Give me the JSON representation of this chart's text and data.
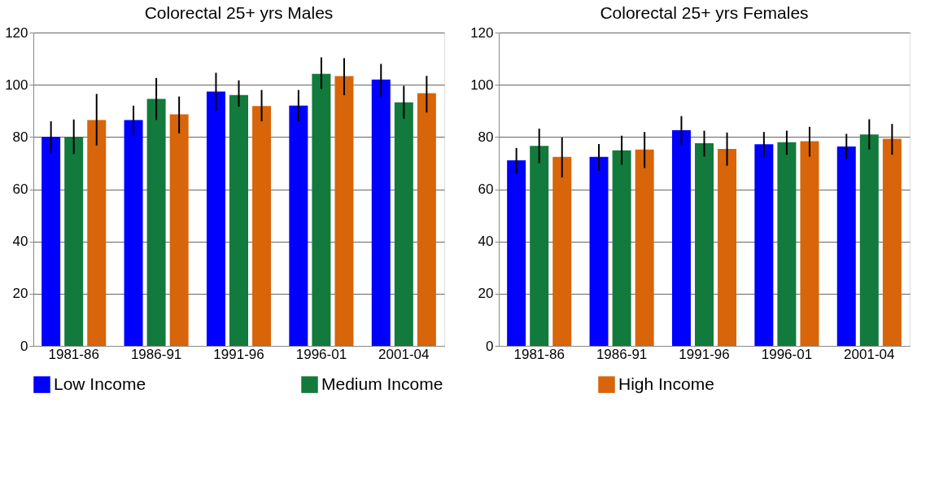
{
  "chart_data": [
    {
      "type": "bar",
      "title": "Colorectal   25+ yrs   Males",
      "categories": [
        "1981-86",
        "1986-91",
        "1991-96",
        "1996-01",
        "2001-04"
      ],
      "ylim": [
        0,
        120
      ],
      "yticks": [
        0,
        20,
        40,
        60,
        80,
        100,
        120
      ],
      "grid": "y",
      "legend": "bottom",
      "series": [
        {
          "name": "Low Income",
          "color": "#0000ff",
          "values": [
            80,
            86.5,
            97.4,
            92,
            102
          ],
          "errors": [
            [
              74,
              86
            ],
            [
              80.5,
              92
            ],
            [
              90,
              104.6
            ],
            [
              86,
              98
            ],
            [
              95.5,
              108
            ]
          ]
        },
        {
          "name": "Medium Income",
          "color": "#127a3c",
          "values": [
            80,
            94.6,
            96.1,
            104.2,
            93.3
          ],
          "errors": [
            [
              73.5,
              86.7
            ],
            [
              86.5,
              102.6
            ],
            [
              91.6,
              101.7
            ],
            [
              98.4,
              110.5
            ],
            [
              87,
              99.6
            ]
          ]
        },
        {
          "name": "High Income",
          "color": "#d8650a",
          "values": [
            86.5,
            88.7,
            91.9,
            103.3,
            96.8
          ],
          "errors": [
            [
              76.7,
              96.5
            ],
            [
              81.4,
              95.5
            ],
            [
              86,
              98
            ],
            [
              96,
              110.2
            ],
            [
              89.4,
              103.4
            ]
          ]
        }
      ]
    },
    {
      "type": "bar",
      "title": "Colorectal   25+ yrs   Females",
      "categories": [
        "1981-86",
        "1986-91",
        "1991-96",
        "1996-01",
        "2001-04"
      ],
      "ylim": [
        0,
        120
      ],
      "yticks": [
        0,
        20,
        40,
        60,
        80,
        100,
        120
      ],
      "grid": "y",
      "legend": "bottom",
      "series": [
        {
          "name": "Low Income",
          "color": "#0000ff",
          "values": [
            71.1,
            72.4,
            82.6,
            77.2,
            76.4
          ],
          "errors": [
            [
              66,
              75.8
            ],
            [
              67.1,
              77.3
            ],
            [
              76.8,
              88
            ],
            [
              72.5,
              81.9
            ],
            [
              71.6,
              81.2
            ]
          ]
        },
        {
          "name": "Medium Income",
          "color": "#127a3c",
          "values": [
            76.6,
            74.9,
            77.6,
            78,
            81
          ],
          "errors": [
            [
              70,
              83.2
            ],
            [
              69.4,
              80.5
            ],
            [
              72.5,
              82.4
            ],
            [
              73.2,
              82.4
            ],
            [
              75.2,
              86.8
            ]
          ]
        },
        {
          "name": "High Income",
          "color": "#d8650a",
          "values": [
            72.4,
            75.2,
            75.4,
            78.4,
            79.3
          ],
          "errors": [
            [
              64.5,
              79.8
            ],
            [
              68.1,
              81.9
            ],
            [
              69,
              81.7
            ],
            [
              72.5,
              83.9
            ],
            [
              73.2,
              85
            ]
          ]
        }
      ]
    }
  ]
}
